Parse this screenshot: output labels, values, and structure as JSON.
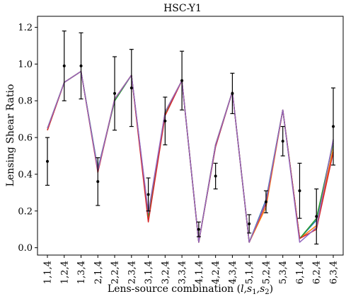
{
  "chart_data": {
    "type": "line",
    "title": "HSC-Y1",
    "xlabel_prefix": "Lens-source combination (",
    "xlabel_math": "l,s",
    "xlabel_sub1": "1",
    "xlabel_sep": ",s",
    "xlabel_sub2": "2",
    "xlabel_suffix": ")",
    "ylabel": "Lensing Shear Ratio",
    "ylim": [
      -0.04,
      1.26
    ],
    "yticks": [
      "0.0",
      "0.2",
      "0.4",
      "0.6",
      "0.8",
      "1.0",
      "1.2"
    ],
    "categories": [
      "1,1,4",
      "1,2,4",
      "1,3,4",
      "2,1,4",
      "2,2,4",
      "2,3,4",
      "3,1,4",
      "3,2,4",
      "3,3,4",
      "4,1,4",
      "4,2,4",
      "4,3,4",
      "5,1,4",
      "5,2,4",
      "5,3,4",
      "6,1,4",
      "6,2,4",
      "6,3,4"
    ],
    "series": [
      {
        "color": "#1f77b4",
        "values": [
          0.64,
          0.9,
          0.96,
          0.43,
          0.8,
          0.94,
          0.18,
          0.73,
          0.91,
          0.03,
          0.55,
          0.85,
          0.03,
          0.26,
          0.75,
          0.05,
          0.15,
          0.58
        ]
      },
      {
        "color": "#ff7f0e",
        "values": [
          0.64,
          0.9,
          0.96,
          0.42,
          0.81,
          0.94,
          0.16,
          0.74,
          0.91,
          0.03,
          0.56,
          0.85,
          0.03,
          0.22,
          0.75,
          0.05,
          0.12,
          0.54
        ]
      },
      {
        "color": "#2ca02c",
        "values": [
          0.65,
          0.9,
          0.96,
          0.42,
          0.8,
          0.94,
          0.17,
          0.73,
          0.91,
          0.03,
          0.56,
          0.85,
          0.03,
          0.25,
          0.75,
          0.05,
          0.16,
          0.57
        ]
      },
      {
        "color": "#d62728",
        "values": [
          0.64,
          0.9,
          0.96,
          0.41,
          0.81,
          0.94,
          0.14,
          0.72,
          0.91,
          0.03,
          0.55,
          0.85,
          0.03,
          0.24,
          0.75,
          0.05,
          0.1,
          0.52
        ]
      },
      {
        "color": "#9467bd",
        "values": [
          0.65,
          0.9,
          0.96,
          0.42,
          0.81,
          0.94,
          0.19,
          0.74,
          0.91,
          0.03,
          0.56,
          0.85,
          0.03,
          0.25,
          0.75,
          0.03,
          0.11,
          0.59
        ]
      }
    ],
    "measurements": {
      "values": [
        0.47,
        0.99,
        0.99,
        0.36,
        0.84,
        0.87,
        0.29,
        0.69,
        0.91,
        0.1,
        0.39,
        0.84,
        0.13,
        0.25,
        0.58,
        0.31,
        0.17,
        0.66
      ],
      "errors": [
        0.13,
        0.19,
        0.18,
        0.13,
        0.2,
        0.21,
        0.09,
        0.13,
        0.16,
        0.04,
        0.07,
        0.11,
        0.05,
        0.06,
        0.08,
        0.15,
        0.15,
        0.21
      ]
    }
  }
}
